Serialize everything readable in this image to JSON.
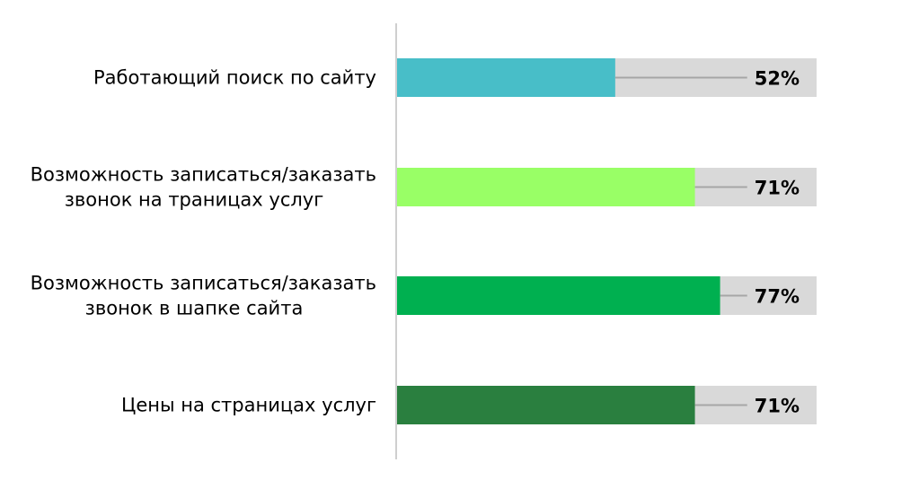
{
  "chart_data": {
    "type": "bar",
    "orientation": "horizontal",
    "categories": [
      [
        "Работающий поиск по сайту"
      ],
      [
        "Возможность записаться/заказать",
        "звонок на траницах услуг"
      ],
      [
        "Возможность записаться/заказать",
        "звонок в шапке сайта"
      ],
      [
        "Цены на страницах услуг"
      ]
    ],
    "values": [
      52,
      71,
      77,
      71
    ],
    "value_labels": [
      "52%",
      "71%",
      "77%",
      "71%"
    ],
    "colors": [
      "#48bec8",
      "#99ff66",
      "#00b050",
      "#2a7f3f"
    ],
    "track_color": "#d9d9d9",
    "xlim": [
      0,
      100
    ],
    "title": "",
    "xlabel": "",
    "ylabel": "",
    "grid": false
  }
}
